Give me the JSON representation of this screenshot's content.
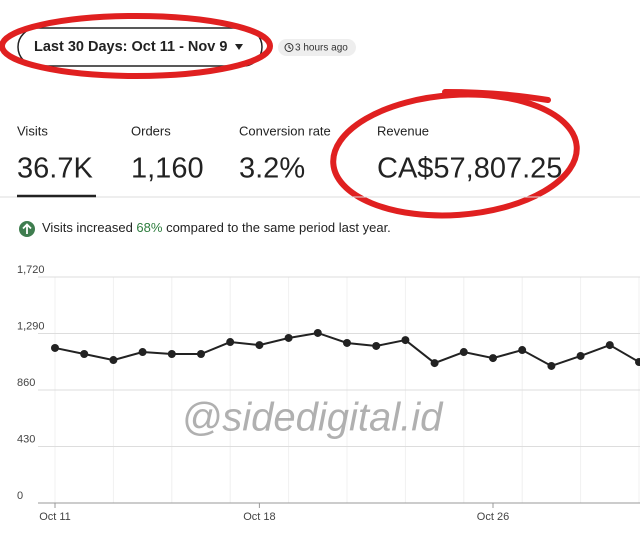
{
  "header": {
    "date_range": "Last 30 Days: Oct 11 - Nov 9",
    "updated": "3 hours ago"
  },
  "stats": [
    {
      "label": "Visits",
      "value": "36.7K"
    },
    {
      "label": "Orders",
      "value": "1,160"
    },
    {
      "label": "Conversion rate",
      "value": "3.2%"
    },
    {
      "label": "Revenue",
      "value": "CA$57,807.25"
    }
  ],
  "note": {
    "before": "Visits increased ",
    "highlight": "68%",
    "after": " compared to the same period last year."
  },
  "watermark": "@sidedigital.id",
  "chart_data": {
    "type": "line",
    "categories": [
      "Oct 11",
      null,
      null,
      null,
      null,
      null,
      null,
      "Oct 18",
      null,
      null,
      null,
      null,
      null,
      null,
      null,
      "Oct 26",
      null,
      null,
      null,
      null,
      null
    ],
    "values": [
      1180,
      1134,
      1088,
      1149,
      1134,
      1134,
      1225,
      1202,
      1256,
      1294,
      1218,
      1195,
      1240,
      1065,
      1149,
      1103,
      1164,
      1043,
      1119,
      1202,
      1073
    ],
    "color": "#222222",
    "ylim": [
      0,
      1720
    ],
    "yticks": [
      0,
      430,
      860,
      {
        "value": 1290,
        "label": "1,290"
      },
      {
        "value": 1720,
        "label": "1,720"
      }
    ],
    "grid": true
  }
}
